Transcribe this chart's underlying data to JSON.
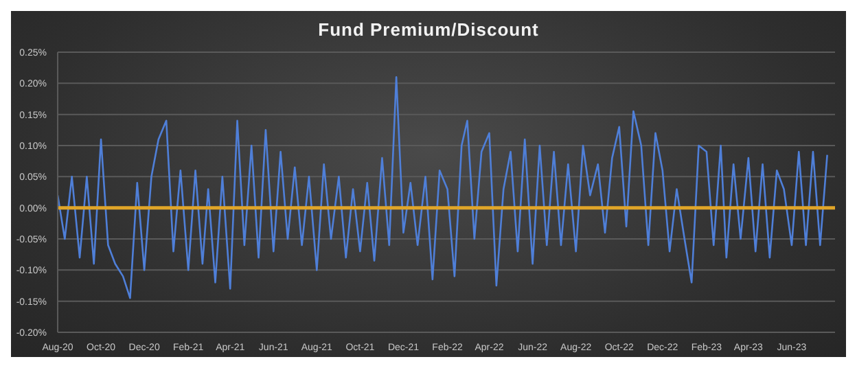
{
  "chart_data": {
    "type": "line",
    "title": "Fund Premium/Discount",
    "x": [
      "2020-08-01",
      "2020-08-11",
      "2020-08-21",
      "2020-09-01",
      "2020-09-11",
      "2020-09-21",
      "2020-10-01",
      "2020-10-11",
      "2020-10-21",
      "2020-11-01",
      "2020-11-11",
      "2020-11-21",
      "2020-12-01",
      "2020-12-11",
      "2020-12-21",
      "2021-01-01",
      "2021-01-11",
      "2021-01-21",
      "2021-02-01",
      "2021-02-11",
      "2021-02-21",
      "2021-03-01",
      "2021-03-11",
      "2021-03-21",
      "2021-04-01",
      "2021-04-11",
      "2021-04-21",
      "2021-05-01",
      "2021-05-11",
      "2021-05-21",
      "2021-06-01",
      "2021-06-11",
      "2021-06-21",
      "2021-07-01",
      "2021-07-11",
      "2021-07-21",
      "2021-08-01",
      "2021-08-11",
      "2021-08-21",
      "2021-09-01",
      "2021-09-11",
      "2021-09-21",
      "2021-10-01",
      "2021-10-11",
      "2021-10-21",
      "2021-11-01",
      "2021-11-11",
      "2021-11-21",
      "2021-12-01",
      "2021-12-11",
      "2021-12-21",
      "2022-01-01",
      "2022-01-11",
      "2022-01-21",
      "2022-02-01",
      "2022-02-11",
      "2022-02-21",
      "2022-03-01",
      "2022-03-11",
      "2022-03-21",
      "2022-04-01",
      "2022-04-11",
      "2022-04-21",
      "2022-05-01",
      "2022-05-11",
      "2022-05-21",
      "2022-06-01",
      "2022-06-11",
      "2022-06-21",
      "2022-07-01",
      "2022-07-11",
      "2022-07-21",
      "2022-08-01",
      "2022-08-11",
      "2022-08-21",
      "2022-09-01",
      "2022-09-11",
      "2022-09-21",
      "2022-10-01",
      "2022-10-11",
      "2022-10-21",
      "2022-11-01",
      "2022-11-11",
      "2022-11-21",
      "2022-12-01",
      "2022-12-11",
      "2022-12-21",
      "2023-01-01",
      "2023-01-11",
      "2023-01-21",
      "2023-02-01",
      "2023-02-11",
      "2023-02-21",
      "2023-03-01",
      "2023-03-11",
      "2023-03-21",
      "2023-04-01",
      "2023-04-11",
      "2023-04-21",
      "2023-05-01",
      "2023-05-11",
      "2023-05-21",
      "2023-06-01",
      "2023-06-11",
      "2023-06-21",
      "2023-07-01",
      "2023-07-11",
      "2023-07-21"
    ],
    "series": [
      {
        "color": "#4f7fd8",
        "values": [
          0.02,
          -0.05,
          0.05,
          -0.08,
          0.05,
          -0.09,
          0.11,
          -0.06,
          -0.09,
          -0.11,
          -0.145,
          0.04,
          -0.1,
          0.05,
          0.11,
          0.14,
          -0.07,
          0.06,
          -0.1,
          0.06,
          -0.09,
          0.03,
          -0.12,
          0.05,
          -0.13,
          0.14,
          -0.06,
          0.1,
          -0.08,
          0.125,
          -0.07,
          0.09,
          -0.05,
          0.065,
          -0.06,
          0.05,
          -0.1,
          0.07,
          -0.05,
          0.05,
          -0.08,
          0.03,
          -0.07,
          0.04,
          -0.085,
          0.08,
          -0.06,
          0.21,
          -0.04,
          0.04,
          -0.06,
          0.05,
          -0.115,
          0.06,
          0.03,
          -0.11,
          0.1,
          0.14,
          -0.05,
          0.09,
          0.12,
          -0.125,
          0.03,
          0.09,
          -0.07,
          0.11,
          -0.09,
          0.1,
          -0.06,
          0.09,
          -0.06,
          0.07,
          -0.07,
          0.1,
          0.02,
          0.07,
          -0.04,
          0.08,
          0.13,
          -0.03,
          0.155,
          0.1,
          -0.06,
          0.12,
          0.06,
          -0.07,
          0.03,
          -0.05,
          -0.12,
          0.1,
          0.09,
          -0.06,
          0.1,
          -0.08,
          0.07,
          -0.05,
          0.08,
          -0.07,
          0.07,
          -0.08,
          0.06,
          0.03,
          -0.06,
          0.09,
          -0.06,
          0.09,
          -0.06,
          0.085
        ]
      }
    ],
    "xlim": [
      "2020-08-01",
      "2023-08-01"
    ],
    "xticks": [
      {
        "value": "2020-08-01",
        "label": "Aug-20"
      },
      {
        "value": "2020-10-01",
        "label": "Oct-20"
      },
      {
        "value": "2020-12-01",
        "label": "Dec-20"
      },
      {
        "value": "2021-02-01",
        "label": "Feb-21"
      },
      {
        "value": "2021-04-01",
        "label": "Apr-21"
      },
      {
        "value": "2021-06-01",
        "label": "Jun-21"
      },
      {
        "value": "2021-08-01",
        "label": "Aug-21"
      },
      {
        "value": "2021-10-01",
        "label": "Oct-21"
      },
      {
        "value": "2021-12-01",
        "label": "Dec-21"
      },
      {
        "value": "2022-02-01",
        "label": "Feb-22"
      },
      {
        "value": "2022-04-01",
        "label": "Apr-22"
      },
      {
        "value": "2022-06-01",
        "label": "Jun-22"
      },
      {
        "value": "2022-08-01",
        "label": "Aug-22"
      },
      {
        "value": "2022-10-01",
        "label": "Oct-22"
      },
      {
        "value": "2022-12-01",
        "label": "Dec-22"
      },
      {
        "value": "2023-02-01",
        "label": "Feb-23"
      },
      {
        "value": "2023-04-01",
        "label": "Apr-23"
      },
      {
        "value": "2023-06-01",
        "label": "Jun-23"
      }
    ],
    "ylim": [
      -0.2,
      0.25
    ],
    "yticks": [
      {
        "value": -0.2,
        "label": "-0.20%"
      },
      {
        "value": -0.15,
        "label": "-0.15%"
      },
      {
        "value": -0.1,
        "label": "-0.10%"
      },
      {
        "value": -0.05,
        "label": "-0.05%"
      },
      {
        "value": 0,
        "label": "0.00%"
      },
      {
        "value": 0.05,
        "label": "0.05%"
      },
      {
        "value": 0.1,
        "label": "0.10%"
      },
      {
        "value": 0.15,
        "label": "0.15%"
      },
      {
        "value": 0.2,
        "label": "0.20%"
      },
      {
        "value": 0.25,
        "label": "0.25%"
      }
    ],
    "ref_lines": [
      {
        "axis": "y",
        "value": 0,
        "color": "#e0a528"
      }
    ],
    "grid": "y",
    "marker": "none",
    "line_style": "solid"
  }
}
